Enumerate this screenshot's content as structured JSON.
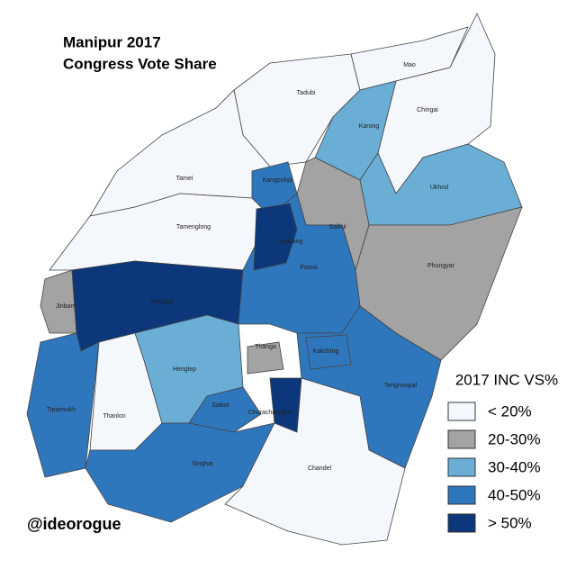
{
  "title": [
    "Manipur 2017",
    "Congress Vote Share"
  ],
  "legend": {
    "title": "2017 INC VS%",
    "items": [
      {
        "label": "< 20%",
        "color": "#f4f8fd"
      },
      {
        "label": "20-30%",
        "color": "#a3a3a3"
      },
      {
        "label": "30-40%",
        "color": "#6aaed6"
      },
      {
        "label": "40-50%",
        "color": "#2f77bc"
      },
      {
        "label": "> 50%",
        "color": "#0c377a"
      }
    ]
  },
  "regions": [
    {
      "name": "Tadubi",
      "color": "#f4f8fd"
    },
    {
      "name": "Mao",
      "color": "#f4f8fd"
    },
    {
      "name": "Chingai",
      "color": "#f4f8fd"
    },
    {
      "name": "Karong",
      "color": "#6aaed6"
    },
    {
      "name": "Ukhrul",
      "color": "#6aaed6"
    },
    {
      "name": "Tamei",
      "color": "#f4f8fd"
    },
    {
      "name": "Tamenglong",
      "color": "#f4f8fd"
    },
    {
      "name": "Kangpokpi",
      "color": "#2f77bc"
    },
    {
      "name": "Saikul",
      "color": "#a3a3a3"
    },
    {
      "name": "Phungyar",
      "color": "#a3a3a3"
    },
    {
      "name": "Jiribam",
      "color": "#a3a3a3"
    },
    {
      "name": "Nungba",
      "color": "#0c377a"
    },
    {
      "name": "Patsoi",
      "color": "#2f77bc"
    },
    {
      "name": "Lamsang",
      "color": "#0c377a"
    },
    {
      "name": "Tipaimukh",
      "color": "#2f77bc"
    },
    {
      "name": "Thanlon",
      "color": "#f4f8fd"
    },
    {
      "name": "Henglep",
      "color": "#6aaed6"
    },
    {
      "name": "Thanga",
      "color": "#a3a3a3"
    },
    {
      "name": "Saikot",
      "color": "#2f77bc"
    },
    {
      "name": "Churachandpur",
      "color": "#0c377a"
    },
    {
      "name": "Singhat",
      "color": "#2f77bc"
    },
    {
      "name": "Tengnoupal",
      "color": "#2f77bc"
    },
    {
      "name": "Kakching",
      "color": "#2f77bc"
    },
    {
      "name": "Chandel",
      "color": "#f4f8fd"
    }
  ],
  "credit": "@ideorogue"
}
